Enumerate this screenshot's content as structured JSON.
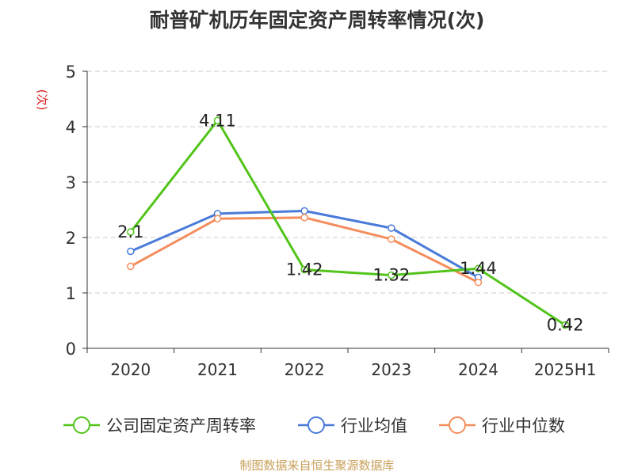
{
  "chart_data": {
    "type": "line",
    "title": "耐普矿机历年固定资产周转率情况(次)",
    "ylabel": "(次)",
    "categories": [
      "2020",
      "2021",
      "2022",
      "2023",
      "2024",
      "2025H1"
    ],
    "ylim": [
      0,
      5
    ],
    "yticks": [
      "0",
      "1",
      "2",
      "3",
      "4",
      "5"
    ],
    "grid": true,
    "legend_position": "bottom",
    "series": [
      {
        "name": "公司固定资产周转率",
        "color": "#52c41a",
        "values": [
          2.1,
          4.11,
          1.42,
          1.32,
          1.44,
          0.42
        ],
        "labels": [
          "2.1",
          "4.11",
          "1.42",
          "1.32",
          "1.44",
          "0.42"
        ]
      },
      {
        "name": "行业均值",
        "color": "#4a7bd8",
        "values": [
          1.75,
          2.43,
          2.48,
          2.17,
          1.28,
          null
        ]
      },
      {
        "name": "行业中位数",
        "color": "#f58d5c",
        "values": [
          1.48,
          2.34,
          2.36,
          1.97,
          1.19,
          null
        ]
      }
    ]
  },
  "source": "制图数据来自恒生聚源数据库",
  "colors": {
    "title": "#333333",
    "axis": "#333333",
    "grid": "#cccccc",
    "ylabel": "#e02020",
    "source": "#c9a05a"
  }
}
